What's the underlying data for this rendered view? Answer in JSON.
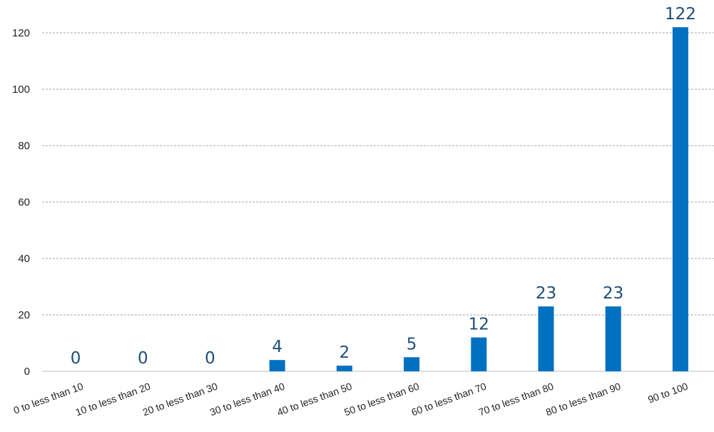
{
  "chart_data": {
    "type": "bar",
    "title": "",
    "xlabel": "",
    "ylabel": "",
    "ylim": [
      0,
      130
    ],
    "yticks": [
      0,
      20,
      40,
      60,
      80,
      100,
      120
    ],
    "grid": true,
    "legend": "none",
    "bar_color": "#0070c0",
    "label_color": "#1f4e79",
    "categories": [
      "0 to less than 10",
      "10 to less than 20",
      "20 to less than 30",
      "30 to less than 40",
      "40 to less than 50",
      "50 to less than 60",
      "60 to less than 70",
      "70 to less than 80",
      "80 to less than 90",
      "90 to 100"
    ],
    "values": [
      0,
      0,
      0,
      4,
      2,
      5,
      12,
      23,
      23,
      122
    ]
  }
}
